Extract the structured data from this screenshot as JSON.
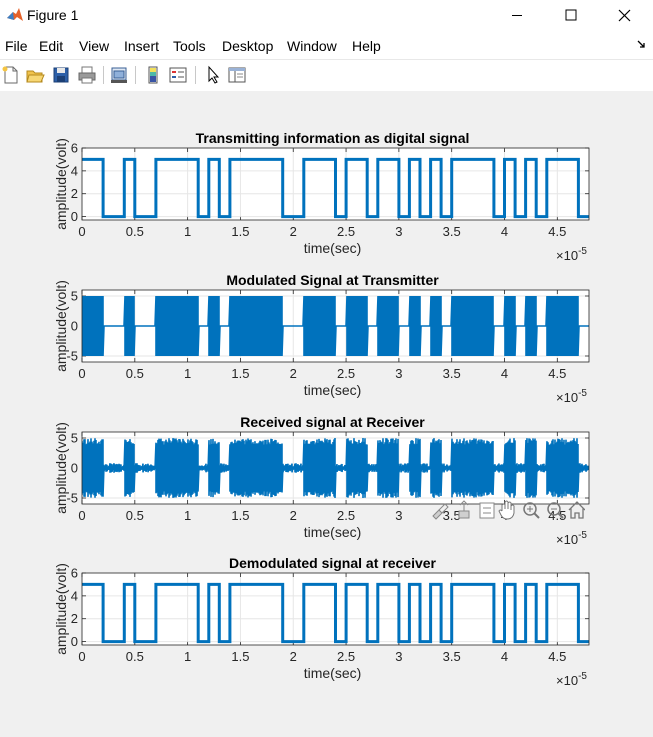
{
  "window": {
    "title": "Figure 1"
  },
  "menu": [
    "File",
    "Edit",
    "View",
    "Insert",
    "Tools",
    "Desktop",
    "Window",
    "Help"
  ],
  "toolbar_icons": [
    "new-figure-icon",
    "open-file-icon",
    "save-icon",
    "print-icon",
    "link-plot-icon",
    "insert-colorbar-icon",
    "insert-legend-icon",
    "edit-plot-icon",
    "property-inspector-icon"
  ],
  "axes_toolbar_icons": [
    "brush-icon",
    "data-tips-icon",
    "restore-view-icon",
    "pan-icon",
    "zoom-in-icon",
    "zoom-out-icon",
    "home-icon"
  ],
  "colors": {
    "line": "#0072bd",
    "grid": "#e6e6e6",
    "axes_bg": "#ffffff",
    "figure_bg": "#f0f0f0"
  },
  "chart_data": [
    {
      "type": "line",
      "title": "Transmitting information as digital signal",
      "xlabel": "time(sec)",
      "ylabel": "amplitude(volt)",
      "x_multiplier": "×10",
      "x_exponent": "-5",
      "xlim": [
        0,
        4.8
      ],
      "ylim": [
        -0.3,
        6
      ],
      "xticks": [
        "0",
        "0.5",
        "1",
        "1.5",
        "2",
        "2.5",
        "3",
        "3.5",
        "4",
        "4.5"
      ],
      "yticks": [
        "0",
        "2",
        "4",
        "6"
      ],
      "grid": true,
      "signal": "digital",
      "bit_period": 0.1,
      "bits": [
        1,
        1,
        0,
        0,
        1,
        0,
        0,
        1,
        1,
        1,
        1,
        0,
        1,
        0,
        1,
        1,
        1,
        1,
        1,
        0,
        0,
        1,
        1,
        1,
        0,
        1,
        1,
        0,
        1,
        1,
        0,
        1,
        0,
        1,
        0,
        1,
        1,
        1,
        1,
        0,
        1,
        0,
        1,
        0,
        1,
        1,
        1,
        0
      ],
      "high": 5,
      "low": 0
    },
    {
      "type": "line",
      "title": "Modulated Signal at Transmitter",
      "xlabel": "time(sec)",
      "ylabel": "amplitude(volt)",
      "x_multiplier": "×10",
      "x_exponent": "-5",
      "xlim": [
        0,
        4.8
      ],
      "ylim": [
        -6,
        6
      ],
      "xticks": [
        "0",
        "0.5",
        "1",
        "1.5",
        "2",
        "2.5",
        "3",
        "3.5",
        "4",
        "4.5"
      ],
      "yticks": [
        "-5",
        "0",
        "5"
      ],
      "grid": true,
      "signal": "ask_modulated",
      "amplitude": 5,
      "noise": 0
    },
    {
      "type": "line",
      "title": "Received signal at Receiver",
      "xlabel": "time(sec)",
      "ylabel": "amplitude(volt)",
      "x_multiplier": "×10",
      "x_exponent": "-5",
      "xlim": [
        0,
        4.8
      ],
      "ylim": [
        -6,
        6
      ],
      "xticks": [
        "0",
        "0.5",
        "1",
        "1.5",
        "2",
        "2.5",
        "3",
        "3.5",
        "4",
        "4.5"
      ],
      "yticks": [
        "-5",
        "0",
        "5"
      ],
      "grid": true,
      "signal": "ask_received",
      "amplitude": 5,
      "noise": 1
    },
    {
      "type": "line",
      "title": "Demodulated signal at receiver",
      "xlabel": "time(sec)",
      "ylabel": "amplitude(volt)",
      "x_multiplier": "×10",
      "x_exponent": "-5",
      "xlim": [
        0,
        4.8
      ],
      "ylim": [
        -0.3,
        6
      ],
      "xticks": [
        "0",
        "0.5",
        "1",
        "1.5",
        "2",
        "2.5",
        "3",
        "3.5",
        "4",
        "4.5"
      ],
      "yticks": [
        "0",
        "2",
        "4",
        "6"
      ],
      "grid": true,
      "signal": "digital",
      "bit_period": 0.1,
      "bits": [
        1,
        1,
        0,
        0,
        1,
        0,
        0,
        1,
        1,
        1,
        1,
        0,
        1,
        0,
        1,
        1,
        1,
        1,
        1,
        0,
        0,
        1,
        1,
        1,
        0,
        1,
        1,
        0,
        1,
        1,
        0,
        1,
        0,
        1,
        0,
        1,
        1,
        1,
        1,
        0,
        1,
        0,
        1,
        0,
        1,
        1,
        1,
        0
      ],
      "high": 5,
      "low": 0
    }
  ]
}
